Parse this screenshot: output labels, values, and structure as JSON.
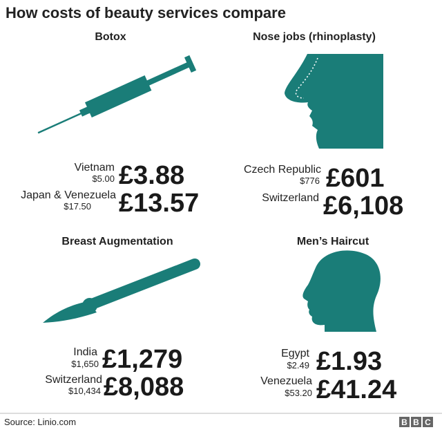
{
  "header": {
    "title": "How costs of beauty services compare"
  },
  "panels": [
    {
      "title": "Botox",
      "rows": [
        {
          "country": "Vietnam",
          "local": "$5.00",
          "gbp": "£3.88"
        },
        {
          "country": "Japan & Venezuela",
          "local": "$17.50",
          "gbp": "£13.57"
        }
      ]
    },
    {
      "title": "Nose jobs (rhinoplasty)",
      "rows": [
        {
          "country": "Czech Republic",
          "local": "$776",
          "gbp": "£601"
        },
        {
          "country": "Switzerland",
          "local": null,
          "gbp": "£6,108"
        }
      ]
    },
    {
      "title": "Breast Augmentation",
      "rows": [
        {
          "country": "India",
          "local": "$1,650",
          "gbp": "£1,279"
        },
        {
          "country": "Switzerland",
          "local": "$10,434",
          "gbp": "£8,088"
        }
      ]
    },
    {
      "title": "Men’s Haircut",
      "rows": [
        {
          "country": "Egypt",
          "local": "$2.49",
          "gbp": "£1.93"
        },
        {
          "country": "Venezuela",
          "local": "$53.20",
          "gbp": "£41.24"
        }
      ]
    }
  ],
  "footer": {
    "source": "Source: Linio.com",
    "logo": [
      "B",
      "B",
      "C"
    ]
  }
}
